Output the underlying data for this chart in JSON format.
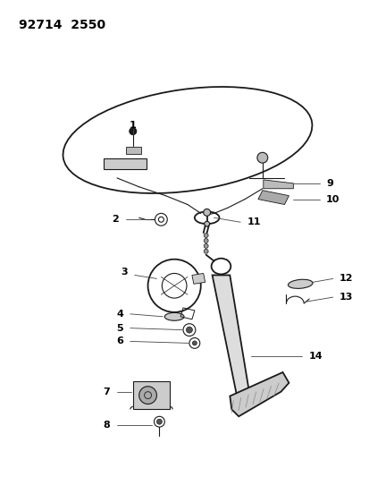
{
  "title": "92714  2550",
  "bg_color": "#ffffff",
  "line_color": "#1a1a1a",
  "label_color": "#000000",
  "fig_width": 4.14,
  "fig_height": 5.33,
  "dpi": 100
}
